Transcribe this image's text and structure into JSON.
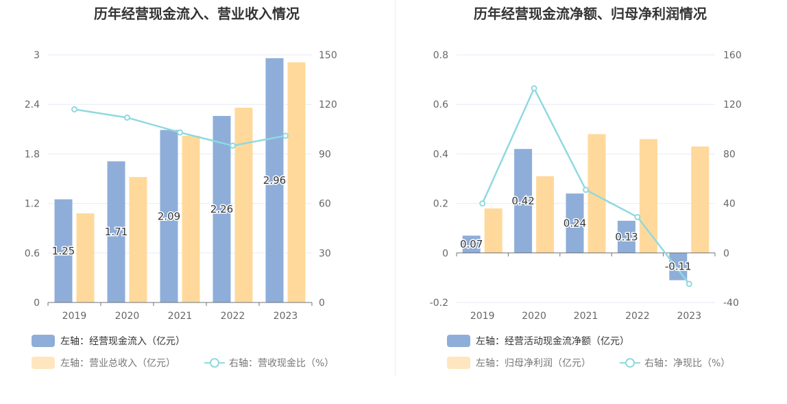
{
  "colors": {
    "bar1": "#8eaed9",
    "bar2": "#ffd99b",
    "line": "#8fd9e0",
    "grid": "#e6ebf5",
    "axis": "#6e7079",
    "text": "#666666"
  },
  "chart_data": [
    {
      "type": "bar",
      "title": "历年经营现金流入、营业收入情况",
      "categories": [
        "2019",
        "2020",
        "2021",
        "2022",
        "2023"
      ],
      "left_axis": {
        "min": 0,
        "max": 3,
        "ticks": [
          "0",
          "0.6",
          "1.2",
          "1.8",
          "2.4",
          "3"
        ]
      },
      "right_axis": {
        "min": 0,
        "max": 150,
        "ticks": [
          "0",
          "30",
          "60",
          "90",
          "120",
          "150"
        ]
      },
      "series": [
        {
          "name": "左轴：经营现金流入（亿元）",
          "type": "bar",
          "axis": "left",
          "values": [
            1.25,
            1.71,
            2.09,
            2.26,
            2.96
          ],
          "labels": [
            "1.25",
            "1.71",
            "2.09",
            "2.26",
            "2.96"
          ]
        },
        {
          "name": "左轴：营业总收入（亿元）",
          "type": "bar",
          "axis": "left",
          "values": [
            1.08,
            1.52,
            2.02,
            2.36,
            2.91
          ]
        },
        {
          "name": "右轴：营收现金比（%）",
          "type": "line",
          "axis": "right",
          "values": [
            117,
            112,
            103,
            95,
            101
          ]
        }
      ]
    },
    {
      "type": "bar",
      "title": "历年经营现金流净额、归母净利润情况",
      "categories": [
        "2019",
        "2020",
        "2021",
        "2022",
        "2023"
      ],
      "left_axis": {
        "min": -0.2,
        "max": 0.8,
        "ticks": [
          "-0.2",
          "0",
          "0.2",
          "0.4",
          "0.6",
          "0.8"
        ]
      },
      "right_axis": {
        "min": -40,
        "max": 160,
        "ticks": [
          "-40",
          "0",
          "40",
          "80",
          "120",
          "160"
        ]
      },
      "series": [
        {
          "name": "左轴：经营活动现金流净额（亿元）",
          "type": "bar",
          "axis": "left",
          "values": [
            0.07,
            0.42,
            0.24,
            0.13,
            -0.11
          ],
          "labels": [
            "0.07",
            "0.42",
            "0.24",
            "0.13",
            "-0.11"
          ]
        },
        {
          "name": "左轴：归母净利润（亿元）",
          "type": "bar",
          "axis": "left",
          "values": [
            0.18,
            0.31,
            0.48,
            0.46,
            0.43
          ]
        },
        {
          "name": "右轴：净现比（%）",
          "type": "line",
          "axis": "right",
          "values": [
            40,
            133,
            51,
            29,
            -25
          ]
        }
      ]
    }
  ]
}
